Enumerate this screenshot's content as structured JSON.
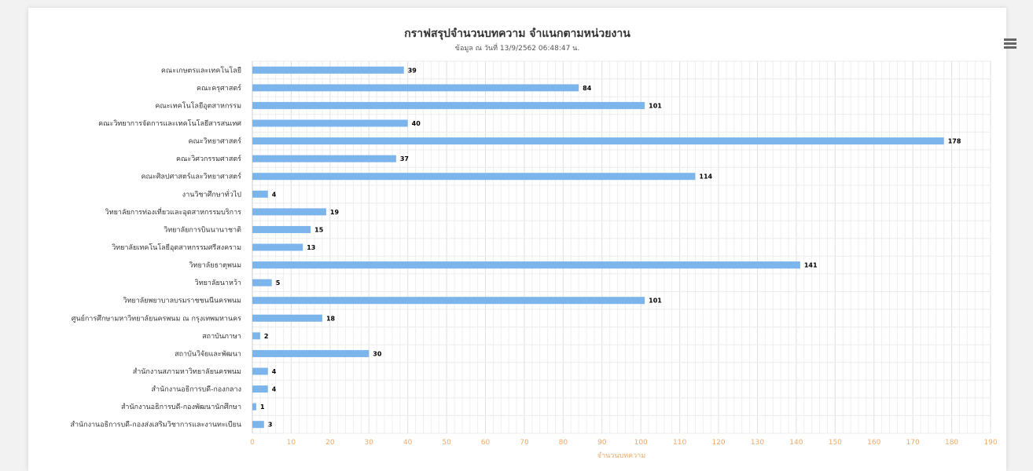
{
  "chart_data": {
    "type": "bar",
    "orientation": "horizontal",
    "title": "กราฟสรุปจำนวนบทความ จำแนกตามหน่วยงาน",
    "subtitle": "ข้อมูล ณ วันที่ 13/9/2562 06:48:47 น.",
    "xlabel": "จำนวนบทความ",
    "ylabel": "",
    "xlim": [
      0,
      190
    ],
    "xticks": [
      0,
      10,
      20,
      30,
      40,
      50,
      60,
      70,
      80,
      90,
      100,
      110,
      120,
      130,
      140,
      150,
      160,
      170,
      180,
      190
    ],
    "grid": true,
    "legend": "none",
    "bar_color": "#7cb5ec",
    "categories": [
      "คณะเกษตรและเทคโนโลยี",
      "คณะครุศาสตร์",
      "คณะเทคโนโลยีอุตสาหกรรม",
      "คณะวิทยาการจัดการและเทคโนโลยีสารสนเทศ",
      "คณะวิทยาศาสตร์",
      "คณะวิศวกรรมศาสตร์",
      "คณะศิลปศาสตร์และวิทยาศาสตร์",
      "งานวิชาศึกษาทั่วไป",
      "วิทยาลัยการท่องเที่ยวและอุตสาหกรรมบริการ",
      "วิทยาลัยการบินนานาชาติ",
      "วิทยาลัยเทคโนโลยีอุตสาหกรรมศรีสงคราม",
      "วิทยาลัยธาตุพนม",
      "วิทยาลัยนาหว้า",
      "วิทยาลัยพยาบาลบรมราชชนนีนครพนม",
      "ศูนย์การศึกษามหาวิทยาลัยนครพนม ณ กรุงเทพมหานคร",
      "สถาบันภาษา",
      "สถาบันวิจัยและพัฒนา",
      "สำนักงานสภามหาวิทยาลัยนครพนม",
      "สำนักงานอธิการบดี-กองกลาง",
      "สำนักงานอธิการบดี-กองพัฒนานักศึกษา",
      "สำนักงานอธิการบดี-กองส่งเสริมวิชาการและงานทะเบียน"
    ],
    "values": [
      39,
      84,
      101,
      40,
      178,
      37,
      114,
      4,
      19,
      15,
      13,
      141,
      5,
      101,
      18,
      2,
      30,
      4,
      4,
      1,
      3
    ]
  },
  "toolbar": {
    "menu_icon": "hamburger-menu-icon"
  }
}
